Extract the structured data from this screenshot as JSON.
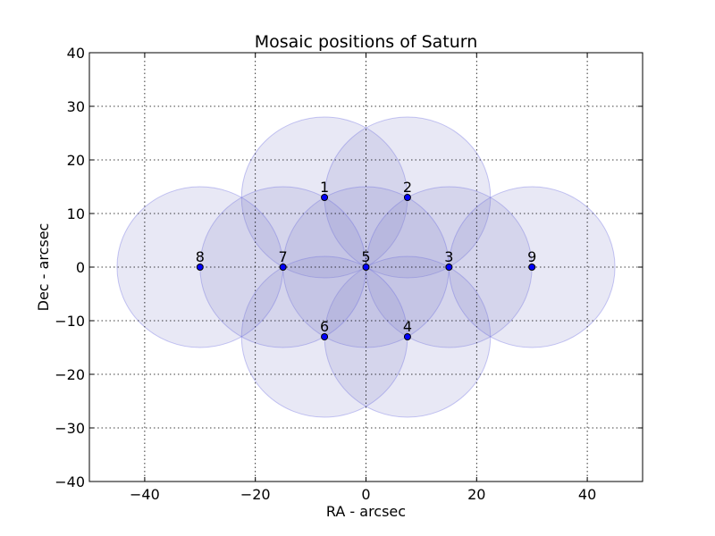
{
  "chart_data": {
    "type": "scatter",
    "title": "Mosaic positions of Saturn",
    "xlabel": "RA - arcsec",
    "ylabel": "Dec - arcsec",
    "xlim": [
      -50,
      50
    ],
    "ylim": [
      -40,
      40
    ],
    "xticks": [
      -40,
      -20,
      0,
      20,
      40
    ],
    "yticks": [
      -40,
      -30,
      -20,
      -10,
      0,
      10,
      20,
      30,
      40
    ],
    "xtick_labels": [
      "−40",
      "−20",
      "0",
      "20",
      "40"
    ],
    "ytick_labels": [
      "−40",
      "−30",
      "−20",
      "−10",
      "0",
      "10",
      "20",
      "30",
      "40"
    ],
    "grid": true,
    "circle_radius": 15,
    "point_color": "#0000ff",
    "circle_fill": "#8080c8",
    "circle_fill_opacity": 0.18,
    "circle_stroke": "#6060e0",
    "circle_stroke_opacity": 0.35,
    "points": [
      {
        "label": "1",
        "x": -7.5,
        "y": 13
      },
      {
        "label": "2",
        "x": 7.5,
        "y": 13
      },
      {
        "label": "3",
        "x": 15,
        "y": 0
      },
      {
        "label": "4",
        "x": 7.5,
        "y": -13
      },
      {
        "label": "5",
        "x": 0,
        "y": 0
      },
      {
        "label": "6",
        "x": -7.5,
        "y": -13
      },
      {
        "label": "7",
        "x": -15,
        "y": 0
      },
      {
        "label": "8",
        "x": -30,
        "y": 0
      },
      {
        "label": "9",
        "x": 30,
        "y": 0
      }
    ]
  }
}
